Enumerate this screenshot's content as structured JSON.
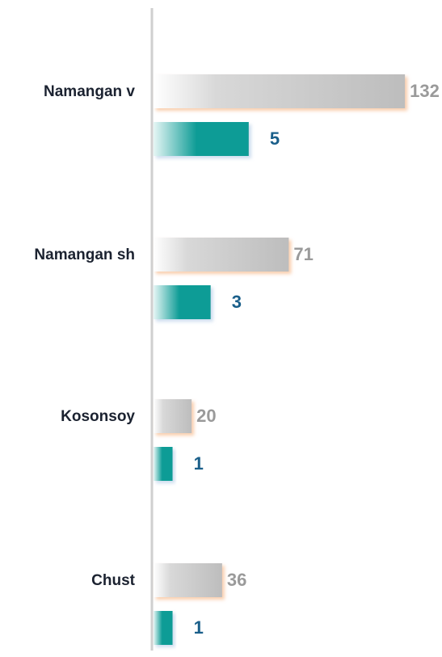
{
  "chart_data": {
    "type": "bar",
    "orientation": "horizontal",
    "categories": [
      "Namangan v",
      "Namangan sh",
      "Kosonsoy",
      "Chust"
    ],
    "series": [
      {
        "color": "#c0c0c0",
        "values": [
          132,
          71,
          20,
          36
        ]
      },
      {
        "color": "#0e9c96",
        "values": [
          5,
          3,
          1,
          1
        ],
        "axis": "x2"
      }
    ],
    "xlim": [
      0,
      140
    ],
    "x2lim": [
      0,
      14
    ]
  }
}
